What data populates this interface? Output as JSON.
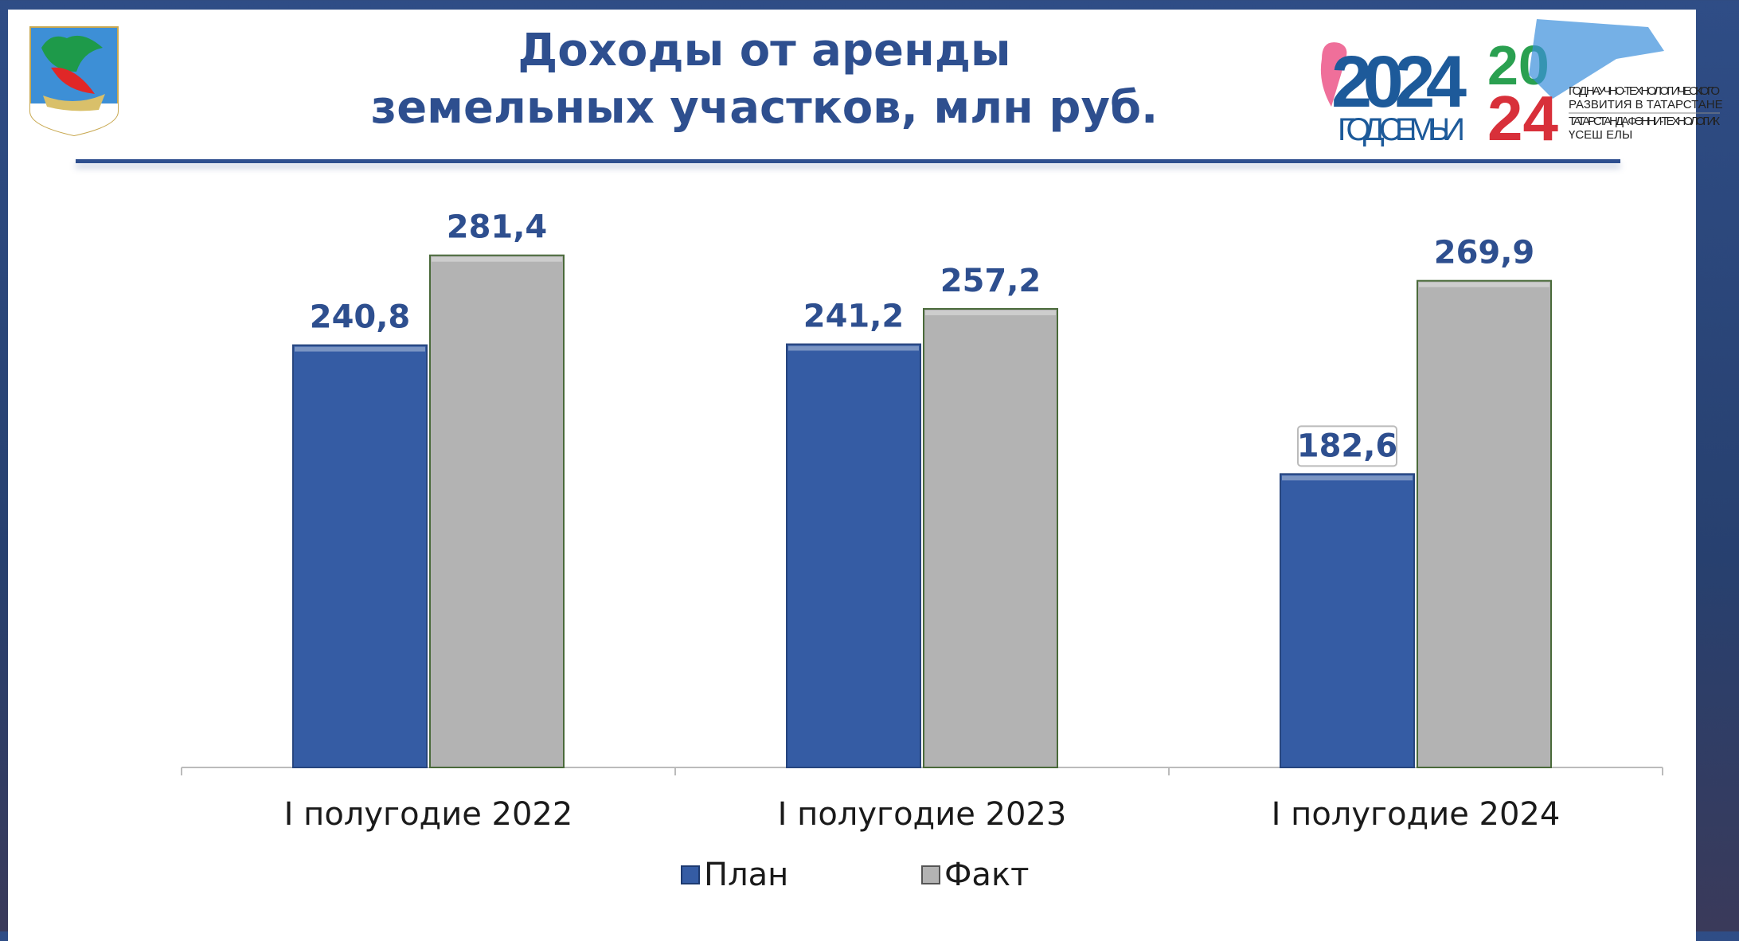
{
  "header": {
    "title_line1": "Доходы от аренды",
    "title_line2": "земельных участков, млн руб.",
    "logo_family": {
      "year": "2024",
      "caption": "ГОД СЕМЬИ"
    },
    "logo_tech": {
      "year": "2024",
      "line1": "ГОД НАУЧНО-ТЕХНОЛОГИЧЕСКОГО",
      "line2": "РАЗВИТИЯ В ТАТАРСТАНЕ",
      "line3": "ТАТАРСТАНДА ФӘННИ-ТЕХНОЛОГИК",
      "line4": "ҮСЕШ ЕЛЫ"
    }
  },
  "colors": {
    "plan": "#355ca4",
    "fact": "#b3b3b3",
    "label": "#2e4f8f"
  },
  "chart_data": {
    "type": "bar",
    "title": "Доходы от аренды земельных участков, млн руб.",
    "categories": [
      "I полугодие 2022",
      "I полугодие 2023",
      "I полугодие 2024"
    ],
    "series": [
      {
        "name": "План",
        "values": [
          240.8,
          241.2,
          182.6
        ],
        "labels": [
          "240,8",
          "241,2",
          "182,6"
        ]
      },
      {
        "name": "Факт",
        "values": [
          281.4,
          257.2,
          269.9
        ],
        "labels": [
          "281,4",
          "257,2",
          "269,9"
        ]
      }
    ],
    "ylim": [
      50,
      290
    ],
    "legend": "bottom",
    "grid": false
  }
}
